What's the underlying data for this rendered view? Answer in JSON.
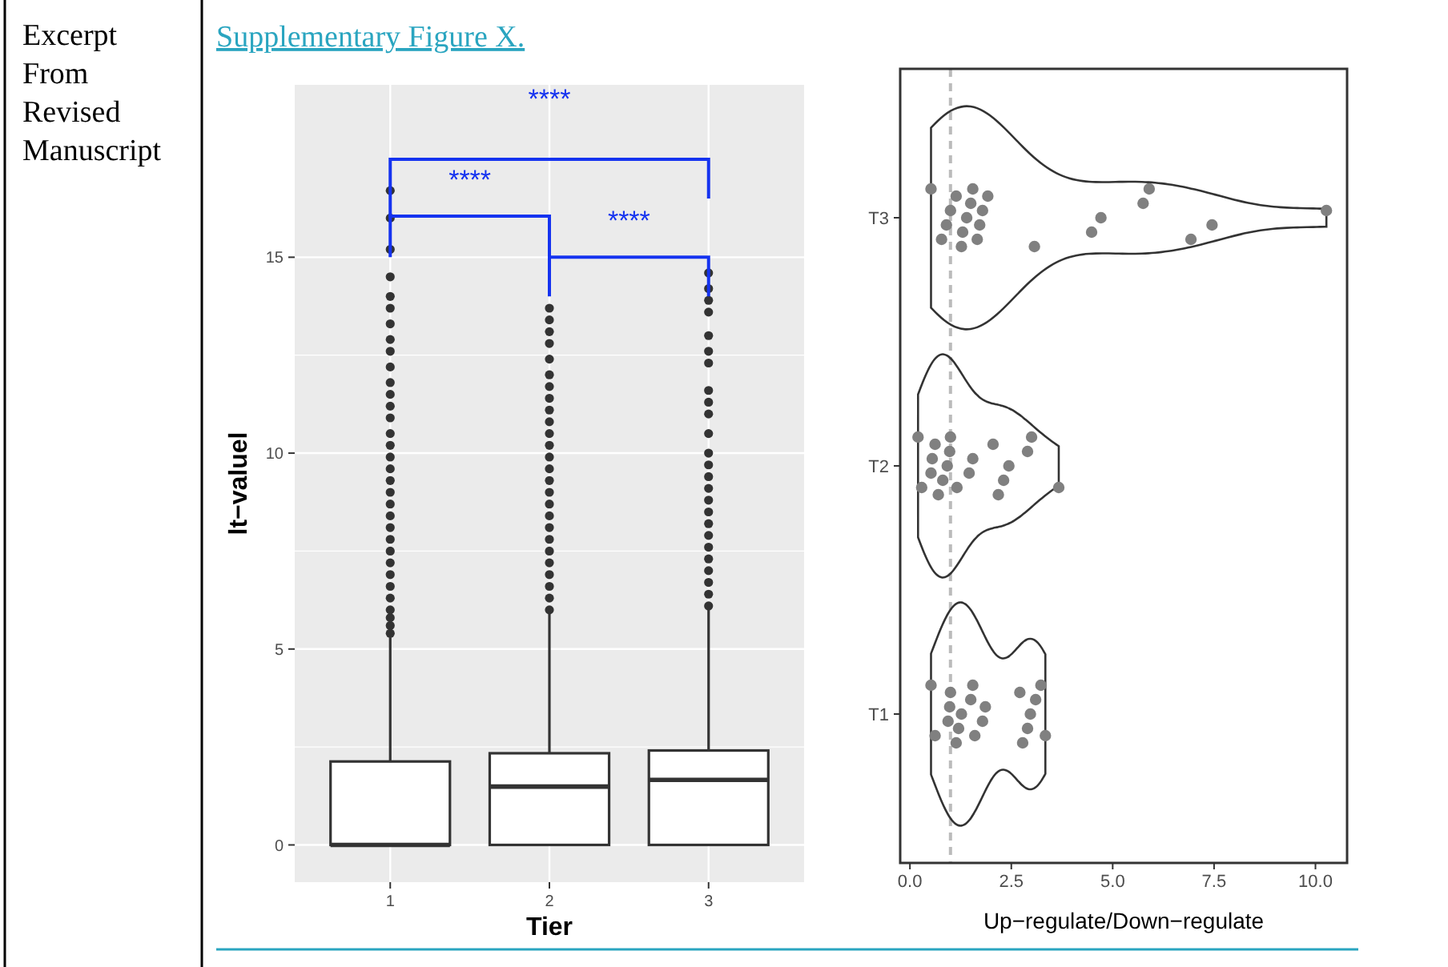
{
  "chart_data": [
    {
      "type": "box",
      "title": "Supplementary Figure X.",
      "xlabel": "Tier",
      "ylabel": "lt−valuel",
      "categories": [
        "1",
        "2",
        "3"
      ],
      "ylim": [
        -0.95,
        19.4
      ],
      "yticks": [
        0,
        5,
        10,
        15
      ],
      "grid": true,
      "boxes": [
        {
          "low": 0,
          "q1": 0,
          "median": 0,
          "q3": 2.13,
          "high": 5.3,
          "outliers": [
            5.4,
            5.6,
            5.8,
            6.0,
            6.3,
            6.6,
            6.9,
            7.2,
            7.5,
            7.8,
            8.1,
            8.4,
            8.7,
            9.0,
            9.3,
            9.6,
            9.9,
            10.2,
            10.5,
            10.9,
            11.2,
            11.5,
            11.8,
            12.2,
            12.6,
            12.9,
            13.3,
            13.7,
            14.0,
            14.5,
            15.2,
            16.0,
            16.7
          ]
        },
        {
          "low": 0,
          "q1": 0,
          "median": 1.49,
          "q3": 2.34,
          "high": 5.9,
          "outliers": [
            6.0,
            6.3,
            6.6,
            6.9,
            7.2,
            7.5,
            7.8,
            8.1,
            8.4,
            8.7,
            9.0,
            9.3,
            9.6,
            9.9,
            10.2,
            10.5,
            10.8,
            11.1,
            11.4,
            11.7,
            12.0,
            12.4,
            12.8,
            13.1,
            13.4,
            13.7
          ]
        },
        {
          "low": 0,
          "q1": 0,
          "median": 1.66,
          "q3": 2.41,
          "high": 6.0,
          "outliers": [
            6.1,
            6.4,
            6.7,
            7.0,
            7.3,
            7.6,
            7.9,
            8.2,
            8.5,
            8.8,
            9.1,
            9.4,
            9.7,
            10.0,
            10.5,
            11.0,
            11.3,
            11.6,
            12.3,
            12.6,
            13.0,
            13.6,
            13.9,
            14.2,
            14.6
          ]
        }
      ],
      "annotations": [
        "****",
        "****",
        "****",
        "Excerpt From Revised Manuscript"
      ]
    },
    {
      "type": "scatter",
      "orientation": "horizontal",
      "xlabel": "Up−regulate/Down−regulate",
      "categories": [
        "T3",
        "T2",
        "T1"
      ],
      "xlim": [
        -0.24,
        10.78
      ],
      "xticks": [
        {
          "value": 0,
          "label": "0.0"
        },
        {
          "value": 2.5,
          "label": "2.5"
        },
        {
          "value": 5,
          "label": "5.0"
        },
        {
          "value": 7.5,
          "label": "7.5"
        },
        {
          "value": 10,
          "label": "10.0"
        }
      ],
      "grid": false,
      "marker": "circle",
      "series": [
        {
          "color": "#808080",
          "x": [
            "T3",
            "T3",
            "T3",
            "T3",
            "T3",
            "T3",
            "T3",
            "T3",
            "T3",
            "T3",
            "T3",
            "T3",
            "T3",
            "T3",
            "T3",
            "T3",
            "T3",
            "T3",
            "T3",
            "T3",
            "T3",
            "T3"
          ],
          "values": [
            0.52,
            0.78,
            0.9,
            1.0,
            1.14,
            1.27,
            1.3,
            1.4,
            1.5,
            1.55,
            1.66,
            1.72,
            1.79,
            1.92,
            3.07,
            4.48,
            4.71,
            5.75,
            5.9,
            6.93,
            7.45,
            10.27
          ]
        },
        {
          "color": "#808080",
          "x": [
            "T2",
            "T2",
            "T2",
            "T2",
            "T2",
            "T2",
            "T2",
            "T2",
            "T2",
            "T2",
            "T2",
            "T2",
            "T2",
            "T2",
            "T2",
            "T2",
            "T2",
            "T2",
            "T2",
            "T2"
          ],
          "values": [
            0.2,
            0.29,
            0.52,
            0.55,
            0.62,
            0.7,
            0.81,
            0.92,
            0.98,
            1.0,
            1.16,
            1.46,
            1.55,
            2.05,
            2.18,
            2.31,
            2.44,
            2.9,
            3.0,
            3.67
          ]
        },
        {
          "color": "#808080",
          "x": [
            "T1",
            "T1",
            "T1",
            "T1",
            "T1",
            "T1",
            "T1",
            "T1",
            "T1",
            "T1",
            "T1",
            "T1",
            "T1",
            "T1",
            "T1",
            "T1",
            "T1",
            "T1",
            "T1",
            "T1"
          ],
          "values": [
            0.52,
            0.62,
            0.94,
            0.98,
            1.0,
            1.14,
            1.2,
            1.27,
            1.5,
            1.55,
            1.6,
            1.79,
            1.86,
            2.71,
            2.78,
            2.9,
            2.97,
            3.1,
            3.23,
            3.34
          ]
        }
      ],
      "ref_lines": [
        {
          "axis": "x",
          "value": 1,
          "color": "#bbbbbb",
          "line_style": "dashed"
        }
      ]
    }
  ]
}
